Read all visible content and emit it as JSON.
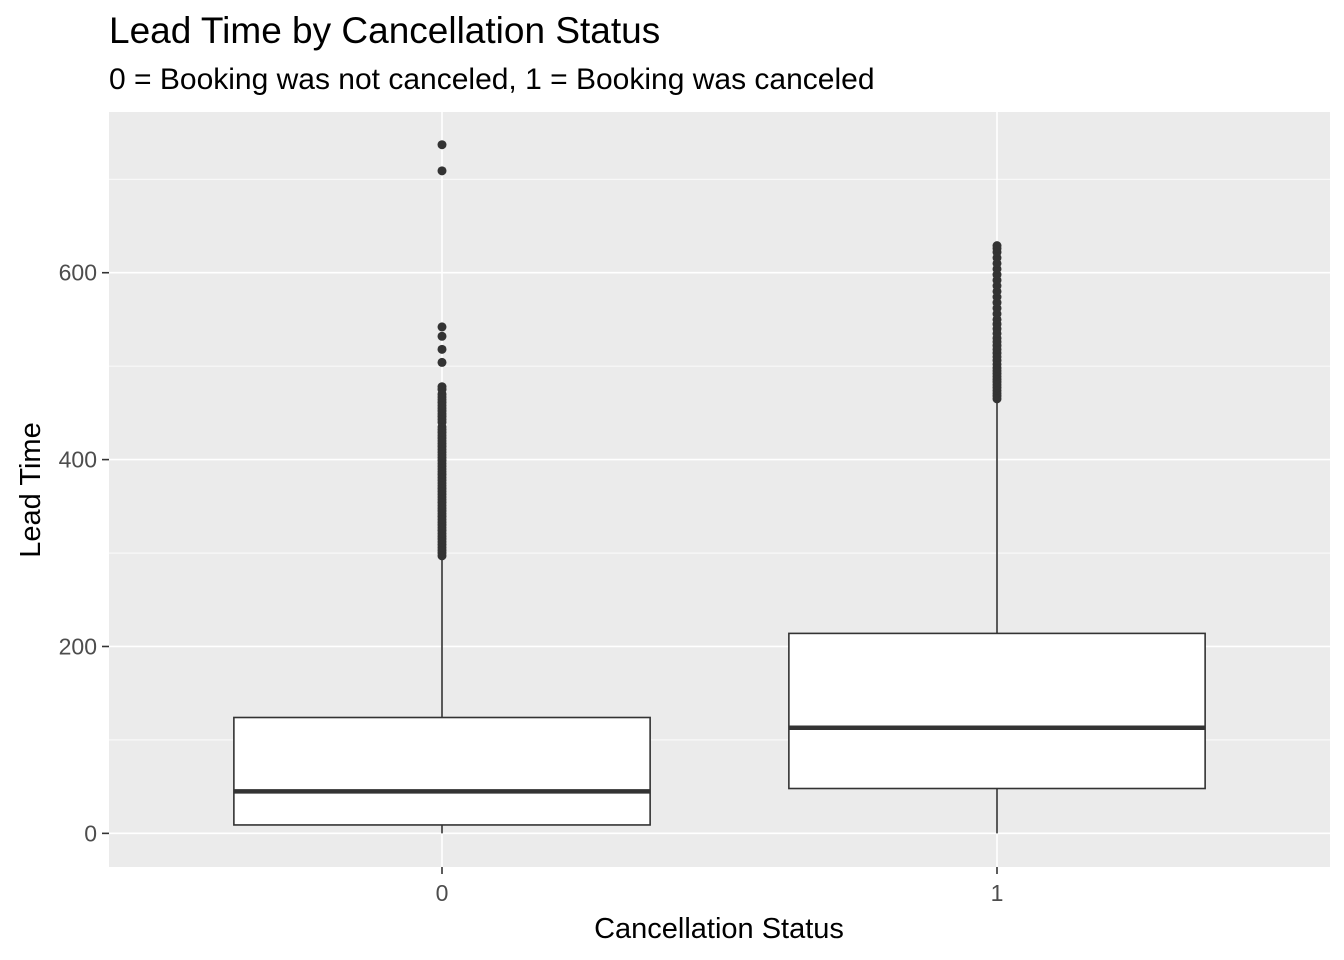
{
  "chart_data": {
    "type": "boxplot",
    "title": "Lead Time by Cancellation Status",
    "subtitle": "0 = Booking was not canceled,  1 = Booking was canceled",
    "xlabel": "Cancellation Status",
    "ylabel": "Lead Time",
    "categories": [
      "0",
      "1"
    ],
    "ylim": [
      -36,
      772
    ],
    "yticks": [
      0,
      200,
      400,
      600
    ],
    "grid": true,
    "colors": {
      "panel": "#ebebeb",
      "grid": "#ffffff",
      "box_fill": "#ffffff",
      "box_stroke": "#333333"
    },
    "boxes": [
      {
        "category": "0",
        "min": 0,
        "q1": 9,
        "median": 45,
        "q3": 124,
        "whisker_high": 296,
        "outliers": [
          297,
          300,
          303,
          306,
          309,
          312,
          315,
          318,
          321,
          324,
          327,
          330,
          333,
          336,
          339,
          342,
          345,
          348,
          351,
          354,
          357,
          360,
          363,
          366,
          369,
          372,
          375,
          378,
          381,
          384,
          387,
          390,
          393,
          396,
          399,
          402,
          405,
          408,
          411,
          414,
          417,
          420,
          423,
          426,
          429,
          432,
          435,
          440,
          443,
          446,
          449,
          452,
          455,
          458,
          461,
          464,
          467,
          470,
          475,
          478,
          504,
          518,
          532,
          542,
          709,
          737
        ]
      },
      {
        "category": "1",
        "min": 0,
        "q1": 48,
        "median": 113,
        "q3": 214,
        "whisker_high": 464,
        "outliers": [
          465,
          468,
          471,
          474,
          477,
          480,
          483,
          486,
          489,
          492,
          495,
          498,
          502,
          506,
          510,
          514,
          518,
          522,
          526,
          530,
          535,
          540,
          545,
          550,
          556,
          562,
          568,
          574,
          580,
          586,
          592,
          598,
          604,
          610,
          616,
          622,
          626,
          629
        ]
      }
    ]
  }
}
